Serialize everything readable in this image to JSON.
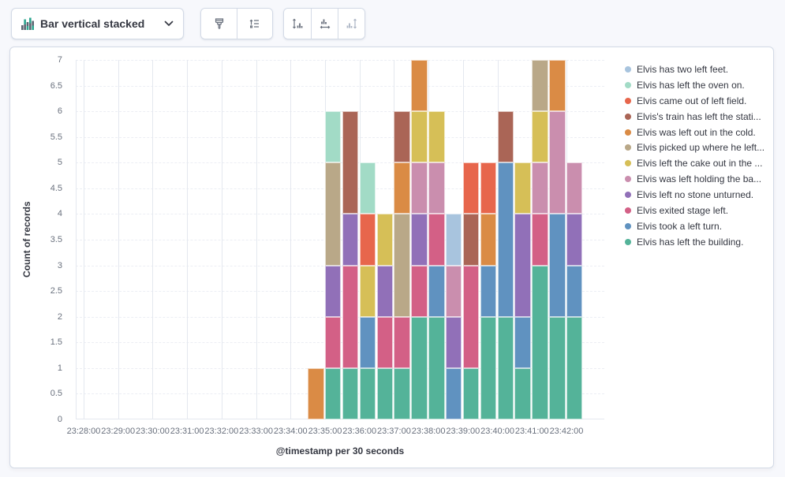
{
  "toolbar": {
    "chart_type_label": "Bar vertical stacked",
    "chart_type_icon": "bar-vertical-stacked-icon",
    "option_buttons": [
      {
        "name": "visual-options-button",
        "icon": "paint-brush-icon",
        "enabled": true
      },
      {
        "name": "legend-button",
        "icon": "legend-list-icon",
        "enabled": true
      },
      {
        "name": "left-axis-button",
        "icon": "left-axis-icon",
        "enabled": true
      },
      {
        "name": "bottom-axis-button",
        "icon": "bottom-axis-icon",
        "enabled": true
      },
      {
        "name": "right-axis-button",
        "icon": "right-axis-icon",
        "enabled": false
      }
    ]
  },
  "chart_data": {
    "type": "bar",
    "stacked": true,
    "orientation": "vertical",
    "xlabel": "@timestamp per 30 seconds",
    "ylabel": "Count of records",
    "ylim": [
      0,
      7
    ],
    "grid": true,
    "legend_position": "right",
    "x_axis_labels": [
      "23:28:00",
      "23:29:00",
      "23:30:00",
      "23:31:00",
      "23:32:00",
      "23:33:00",
      "23:34:00",
      "23:35:00",
      "23:36:00",
      "23:37:00",
      "23:38:00",
      "23:39:00",
      "23:40:00",
      "23:41:00",
      "23:42:00"
    ],
    "y_tick_labels": [
      "0",
      "0.5",
      "1",
      "1.5",
      "2",
      "2.5",
      "3",
      "3.5",
      "4",
      "4.5",
      "5",
      "5.5",
      "6",
      "6.5",
      "7"
    ],
    "categories": [
      "23:34:30",
      "23:35:00",
      "23:35:30",
      "23:36:00",
      "23:36:30",
      "23:37:00",
      "23:37:30",
      "23:38:00",
      "23:38:30",
      "23:39:00",
      "23:39:30",
      "23:40:00",
      "23:40:30",
      "23:41:00",
      "23:41:30",
      "23:42:00"
    ],
    "series": [
      {
        "name": "Elvis has left the building.",
        "color": "#54B399",
        "values": [
          0,
          1,
          1,
          1,
          1,
          1,
          2,
          2,
          0,
          1,
          2,
          2,
          1,
          3,
          2,
          2
        ]
      },
      {
        "name": "Elvis took a left turn.",
        "color": "#6092C0",
        "values": [
          0,
          0,
          0,
          1,
          0,
          0,
          0,
          1,
          1,
          0,
          1,
          3,
          1,
          0,
          2,
          1
        ]
      },
      {
        "name": "Elvis exited stage left.",
        "color": "#D36086",
        "values": [
          0,
          1,
          2,
          0,
          1,
          1,
          1,
          1,
          0,
          2,
          0,
          0,
          0,
          1,
          0,
          0
        ]
      },
      {
        "name": "Elvis left no stone unturned.",
        "color": "#9170B8",
        "values": [
          0,
          1,
          1,
          0,
          1,
          0,
          1,
          0,
          1,
          0,
          0,
          0,
          2,
          0,
          0,
          1
        ]
      },
      {
        "name": "Elvis was left holding the ba...",
        "color": "#CA8EAE",
        "values": [
          0,
          0,
          0,
          0,
          0,
          0,
          1,
          1,
          1,
          0,
          0,
          0,
          0,
          1,
          2,
          1
        ]
      },
      {
        "name": "Elvis left the cake out in the ...",
        "color": "#D6BF57",
        "values": [
          0,
          0,
          0,
          1,
          1,
          0,
          1,
          1,
          0,
          0,
          0,
          0,
          1,
          1,
          0,
          0
        ]
      },
      {
        "name": "Elvis picked up where he left...",
        "color": "#B9A888",
        "values": [
          0,
          2,
          0,
          0,
          0,
          2,
          0,
          0,
          0,
          0,
          0,
          0,
          0,
          1,
          0,
          0
        ]
      },
      {
        "name": "Elvis was left out in the cold.",
        "color": "#DA8B45",
        "values": [
          1,
          0,
          0,
          0,
          0,
          1,
          1,
          0,
          0,
          0,
          1,
          0,
          0,
          0,
          1,
          0
        ]
      },
      {
        "name": "Elvis's train has left the stati...",
        "color": "#AA6556",
        "values": [
          0,
          0,
          2,
          0,
          0,
          1,
          0,
          0,
          0,
          1,
          0,
          1,
          0,
          0,
          0,
          0
        ]
      },
      {
        "name": "Elvis came out of left field.",
        "color": "#E7664C",
        "values": [
          0,
          0,
          0,
          1,
          0,
          0,
          0,
          0,
          0,
          1,
          1,
          0,
          0,
          0,
          0,
          0
        ]
      },
      {
        "name": "Elvis has left the oven on.",
        "color": "#A2DBC6",
        "values": [
          0,
          1,
          0,
          1,
          0,
          0,
          0,
          0,
          0,
          0,
          0,
          0,
          0,
          0,
          0,
          0
        ]
      },
      {
        "name": "Elvis has two left feet.",
        "color": "#A8C4DE",
        "values": [
          0,
          0,
          0,
          0,
          0,
          0,
          0,
          0,
          1,
          0,
          0,
          0,
          0,
          0,
          0,
          0
        ]
      }
    ],
    "legend_order": "top of stack listed first (reverse of series order)"
  }
}
